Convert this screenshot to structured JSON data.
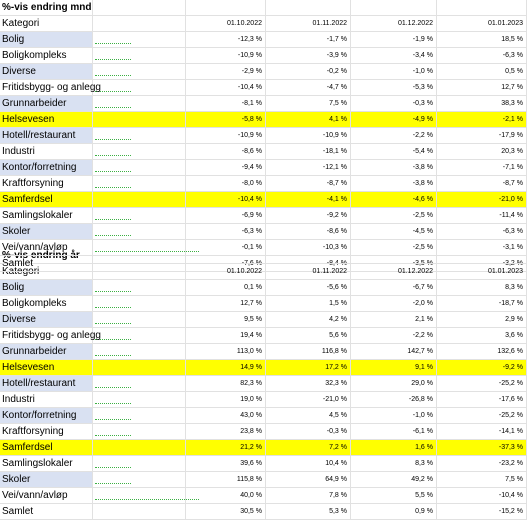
{
  "tables": [
    {
      "title": "%-vis endring mnd",
      "category_header": "Kategori",
      "dates": [
        "01.10.2022",
        "01.11.2022",
        "01.12.2022",
        "01.01.2023"
      ],
      "rows": [
        {
          "label": "Bolig",
          "values": [
            "-12,3 %",
            "-1,7 %",
            "-1,9 %",
            "18,5 %"
          ],
          "highlight": false
        },
        {
          "label": "Boligkompleks",
          "values": [
            "-10,9 %",
            "-3,9 %",
            "-3,4 %",
            "-6,3 %"
          ],
          "highlight": false
        },
        {
          "label": "Diverse",
          "values": [
            "-2,9 %",
            "-0,2 %",
            "-1,0 %",
            "0,5 %"
          ],
          "highlight": false
        },
        {
          "label": "Fritidsbygg- og anlegg",
          "values": [
            "-10,4 %",
            "-4,7 %",
            "-5,3 %",
            "12,7 %"
          ],
          "highlight": false
        },
        {
          "label": "Grunnarbeider",
          "values": [
            "-8,1 %",
            "7,5 %",
            "-0,3 %",
            "38,3 %"
          ],
          "highlight": false
        },
        {
          "label": "Helsevesen",
          "values": [
            "-5,8 %",
            "4,1 %",
            "-4,9 %",
            "-2,1 %"
          ],
          "highlight": true
        },
        {
          "label": "Hotell/restaurant",
          "values": [
            "-10,9 %",
            "-10,9 %",
            "-2,2 %",
            "-17,9 %"
          ],
          "highlight": false
        },
        {
          "label": "Industri",
          "values": [
            "-8,6 %",
            "-18,1 %",
            "-5,4 %",
            "20,3 %"
          ],
          "highlight": false
        },
        {
          "label": "Kontor/forretning",
          "values": [
            "-9,4 %",
            "-12,1 %",
            "-3,8 %",
            "-7,1 %"
          ],
          "highlight": false
        },
        {
          "label": "Kraftforsyning",
          "values": [
            "-8,0 %",
            "-8,7 %",
            "-3,8 %",
            "-8,7 %"
          ],
          "highlight": false
        },
        {
          "label": "Samferdsel",
          "values": [
            "-10,4 %",
            "-4,1 %",
            "-4,6 %",
            "-21,0 %"
          ],
          "highlight": true
        },
        {
          "label": "Samlingslokaler",
          "values": [
            "-6,9 %",
            "-9,2 %",
            "-2,5 %",
            "-11,4 %"
          ],
          "highlight": false
        },
        {
          "label": "Skoler",
          "values": [
            "-6,3 %",
            "-8,6 %",
            "-4,5 %",
            "-6,3 %"
          ],
          "highlight": false
        },
        {
          "label": "Vei/vann/avløp",
          "values": [
            "-0,1 %",
            "-10,3 %",
            "-2,5 %",
            "-3,1 %"
          ],
          "highlight": false
        },
        {
          "label": "Samlet",
          "values": [
            "-7,6 %",
            "-8,4 %",
            "-3,5 %",
            "-3,2 %"
          ],
          "highlight": false
        }
      ]
    },
    {
      "title": "%-vis endring år",
      "category_header": "Kategori",
      "dates": [
        "01.10.2022",
        "01.11.2022",
        "01.12.2022",
        "01.01.2023"
      ],
      "rows": [
        {
          "label": "Bolig",
          "values": [
            "0,1 %",
            "-5,6 %",
            "-6,7 %",
            "8,3 %"
          ],
          "highlight": false
        },
        {
          "label": "Boligkompleks",
          "values": [
            "12,7 %",
            "1,5 %",
            "-2,0 %",
            "-18,7 %"
          ],
          "highlight": false
        },
        {
          "label": "Diverse",
          "values": [
            "9,5 %",
            "4,2 %",
            "2,1 %",
            "2,9 %"
          ],
          "highlight": false
        },
        {
          "label": "Fritidsbygg- og anlegg",
          "values": [
            "19,4 %",
            "5,6 %",
            "-2,2 %",
            "3,6 %"
          ],
          "highlight": false
        },
        {
          "label": "Grunnarbeider",
          "values": [
            "113,0 %",
            "116,8 %",
            "142,7 %",
            "132,6 %"
          ],
          "highlight": false
        },
        {
          "label": "Helsevesen",
          "values": [
            "14,9 %",
            "17,2 %",
            "9,1 %",
            "-9,2 %"
          ],
          "highlight": true
        },
        {
          "label": "Hotell/restaurant",
          "values": [
            "82,3 %",
            "32,3 %",
            "29,0 %",
            "-25,2 %"
          ],
          "highlight": false
        },
        {
          "label": "Industri",
          "values": [
            "19,0 %",
            "-21,0 %",
            "-26,8 %",
            "-17,6 %"
          ],
          "highlight": false
        },
        {
          "label": "Kontor/forretning",
          "values": [
            "43,0 %",
            "4,5 %",
            "-1,0 %",
            "-25,2 %"
          ],
          "highlight": false
        },
        {
          "label": "Kraftforsyning",
          "values": [
            "23,8 %",
            "-0,3 %",
            "-6,1 %",
            "-14,1 %"
          ],
          "highlight": false
        },
        {
          "label": "Samferdsel",
          "values": [
            "21,2 %",
            "7,2 %",
            "1,6 %",
            "-37,3 %"
          ],
          "highlight": true
        },
        {
          "label": "Samlingslokaler",
          "values": [
            "39,6 %",
            "10,4 %",
            "8,3 %",
            "-23,2 %"
          ],
          "highlight": false
        },
        {
          "label": "Skoler",
          "values": [
            "115,8 %",
            "64,9 %",
            "49,2 %",
            "7,5 %"
          ],
          "highlight": false
        },
        {
          "label": "Vei/vann/avløp",
          "values": [
            "40,0 %",
            "7,8 %",
            "5,5 %",
            "-10,4 %"
          ],
          "highlight": false
        },
        {
          "label": "Samlet",
          "values": [
            "30,5 %",
            "5,3 %",
            "0,9 %",
            "-15,2 %"
          ],
          "highlight": false
        }
      ]
    }
  ],
  "colors": {
    "highlight": "#ffff00",
    "category_fill": "#d9e1f2",
    "sparkline_dots": "#3cb043",
    "gridline": "#e1e1e1"
  }
}
